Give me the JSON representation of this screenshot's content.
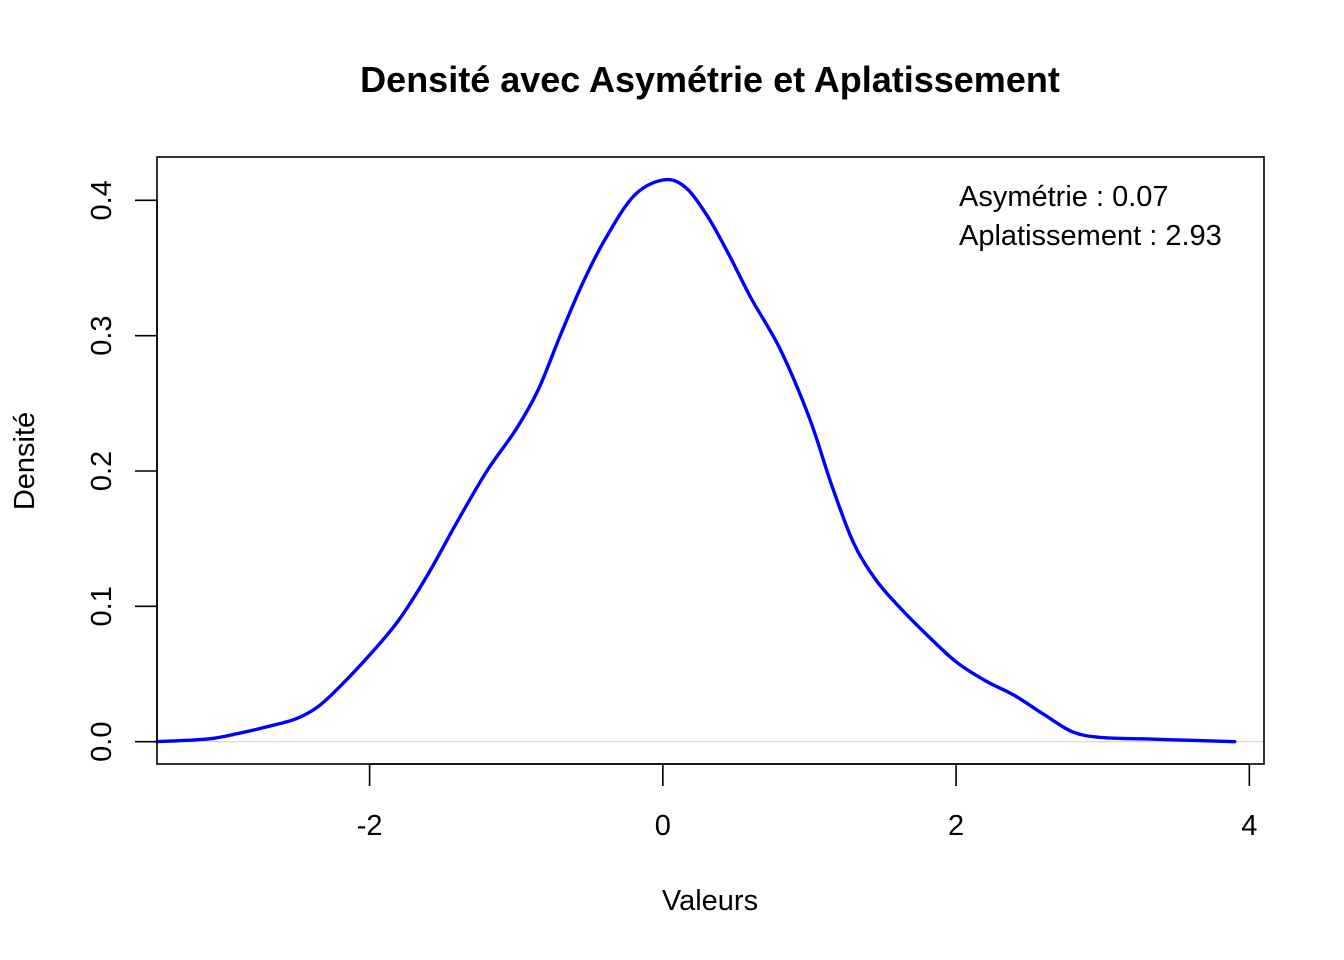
{
  "chart_data": {
    "type": "line",
    "title": "Densité avec Asymétrie et Aplatissement",
    "xlabel": "Valeurs",
    "ylabel": "Densité",
    "xlim": [
      -3.45,
      4.1
    ],
    "ylim": [
      -0.0165,
      0.432
    ],
    "x_ticks": [
      -2,
      0,
      2,
      4
    ],
    "x_tick_labels": [
      "-2",
      "0",
      "2",
      "4"
    ],
    "y_ticks": [
      0.0,
      0.1,
      0.2,
      0.3,
      0.4
    ],
    "y_tick_labels": [
      "0.0",
      "0.1",
      "0.2",
      "0.3",
      "0.4"
    ],
    "grid": false,
    "reference_line": {
      "y": 0,
      "color": "#d3d3d3"
    },
    "annotations": [
      "Asymétrie : 0.07",
      "Aplatissement : 2.93"
    ],
    "annotation_placement": "top-right",
    "series": [
      {
        "color": "#0000ff",
        "x": [
          -3.45,
          -3.1,
          -2.9,
          -2.7,
          -2.5,
          -2.35,
          -2.2,
          -2.0,
          -1.8,
          -1.6,
          -1.4,
          -1.2,
          -1.0,
          -0.85,
          -0.7,
          -0.55,
          -0.4,
          -0.2,
          0.0,
          0.15,
          0.3,
          0.45,
          0.6,
          0.8,
          1.0,
          1.15,
          1.3,
          1.45,
          1.6,
          1.8,
          2.0,
          2.2,
          2.4,
          2.6,
          2.8,
          3.0,
          3.3,
          3.6,
          3.9
        ],
        "y": [
          0.0,
          0.002,
          0.006,
          0.011,
          0.017,
          0.026,
          0.041,
          0.064,
          0.09,
          0.124,
          0.163,
          0.2,
          0.231,
          0.26,
          0.3,
          0.338,
          0.37,
          0.403,
          0.415,
          0.41,
          0.389,
          0.36,
          0.328,
          0.29,
          0.239,
          0.19,
          0.147,
          0.12,
          0.101,
          0.079,
          0.059,
          0.045,
          0.034,
          0.02,
          0.007,
          0.003,
          0.002,
          0.001,
          0.0
        ]
      }
    ]
  }
}
